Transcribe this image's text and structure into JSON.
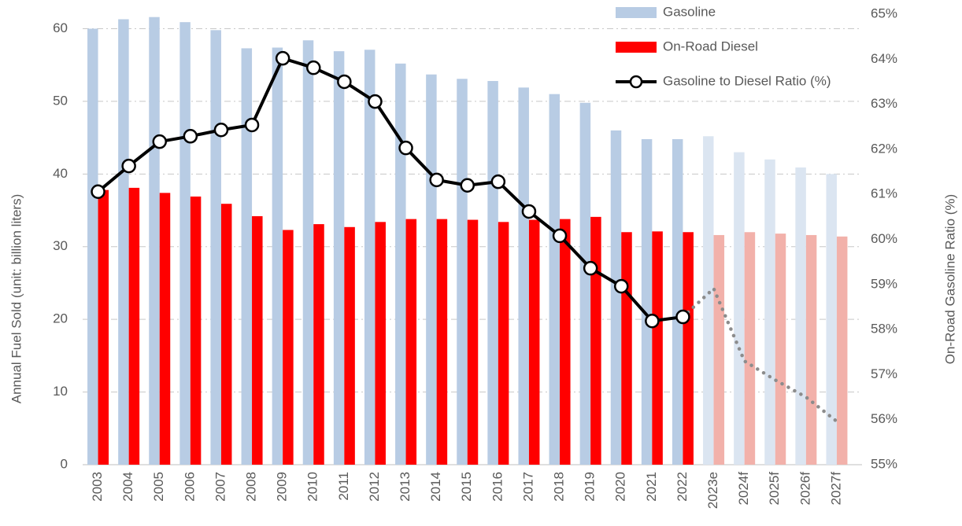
{
  "chart_data": {
    "type": "bar_line",
    "categories": [
      "2003",
      "2004",
      "2005",
      "2006",
      "2007",
      "2008",
      "2009",
      "2010",
      "2011",
      "2012",
      "2013",
      "2014",
      "2015",
      "2016",
      "2017",
      "2018",
      "2019",
      "2020",
      "2021",
      "2022",
      "2023e",
      "2024f",
      "2025f",
      "2026f",
      "2027f"
    ],
    "forecast_from": "2023e",
    "series": [
      {
        "name": "Gasoline",
        "color": "#b8cce4",
        "forecast_color": "#dbe5f1",
        "values": [
          60.0,
          61.3,
          61.6,
          60.9,
          59.8,
          57.3,
          57.4,
          58.4,
          56.9,
          57.1,
          55.2,
          53.7,
          53.1,
          52.8,
          51.9,
          51.0,
          49.8,
          46.0,
          44.8,
          44.8,
          45.2,
          43.0,
          42.0,
          40.9,
          40.0
        ]
      },
      {
        "name": "On-Road Diesel",
        "color": "#ff0000",
        "forecast_color": "#f2b1aa",
        "values": [
          37.8,
          38.1,
          37.4,
          36.9,
          35.9,
          34.2,
          32.3,
          33.1,
          32.7,
          33.4,
          33.8,
          33.8,
          33.7,
          33.4,
          33.7,
          33.8,
          34.1,
          32.0,
          32.1,
          32.0,
          31.6,
          32.0,
          31.8,
          31.6,
          31.4
        ]
      },
      {
        "name": "Gasoline to Diesel Ratio (%)",
        "type": "line",
        "axis": "y2",
        "color": "#000000",
        "forecast_color": "#8c8c8c",
        "values": [
          61.06,
          61.63,
          62.17,
          62.29,
          62.43,
          62.54,
          64.02,
          63.81,
          63.5,
          63.06,
          62.03,
          61.32,
          61.2,
          61.28,
          60.62,
          60.08,
          59.36,
          58.96,
          58.19,
          58.28,
          58.91,
          57.3,
          56.88,
          56.5,
          55.96
        ]
      }
    ],
    "ylabel": "Annual Fuel Sold (unit: billion liters)",
    "y2label": "On-Road Gasoline Ratio (%)",
    "ylim": [
      0,
      62
    ],
    "yticks": [
      0,
      10,
      20,
      30,
      40,
      50,
      60
    ],
    "y2lim": [
      55,
      65
    ],
    "y2ticks": [
      {
        "value": 55,
        "label": "55%"
      },
      {
        "value": 56,
        "label": "56%"
      },
      {
        "value": 57,
        "label": "57%"
      },
      {
        "value": 58,
        "label": "58%"
      },
      {
        "value": 59,
        "label": "59%"
      },
      {
        "value": 60,
        "label": "60%"
      },
      {
        "value": 61,
        "label": "61%"
      },
      {
        "value": 62,
        "label": "62%"
      },
      {
        "value": 63,
        "label": "63%"
      },
      {
        "value": 64,
        "label": "64%"
      },
      {
        "value": 65,
        "label": "65%"
      }
    ],
    "grid": true,
    "legend": "top-right"
  }
}
